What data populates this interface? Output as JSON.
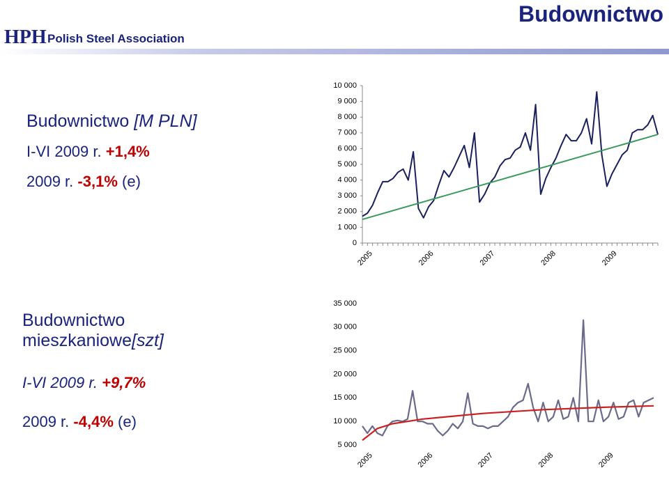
{
  "header": {
    "logo": "HPH",
    "org": "Polish Steel Association",
    "title": "Budownictwo"
  },
  "block1": {
    "title": "Budownictwo",
    "unit": "[M PLN]",
    "line1": {
      "label": "I-VI 2009 r.",
      "value": "+1,4%"
    },
    "line2": {
      "label": "2009 r.",
      "value": "-3,1%",
      "note": "(e)"
    }
  },
  "block2": {
    "title": "Budownictwo",
    "title2": "mieszkaniowe",
    "unit": "[szt]",
    "line1": {
      "label": "I-VI 2009 r.",
      "value": "+9,7%"
    },
    "line2": {
      "label": "2009 r.",
      "value": "-4,4%",
      "note": "(e)"
    }
  },
  "chart_data": [
    {
      "type": "line",
      "categories": [
        "2005",
        null,
        null,
        null,
        null,
        null,
        null,
        null,
        null,
        null,
        null,
        null,
        "2006",
        null,
        null,
        null,
        null,
        null,
        null,
        null,
        null,
        null,
        null,
        null,
        "2007",
        null,
        null,
        null,
        null,
        null,
        null,
        null,
        null,
        null,
        null,
        null,
        "2008",
        null,
        null,
        null,
        null,
        null,
        null,
        null,
        null,
        null,
        null,
        null,
        "2009",
        null,
        null,
        null,
        null,
        null,
        null,
        null,
        null,
        null,
        null
      ],
      "series": [
        {
          "color": "#1a1f5e",
          "values": [
            1700,
            1900,
            2400,
            3200,
            3900,
            3900,
            4100,
            4500,
            4700,
            4000,
            5800,
            2200,
            1600,
            2300,
            2700,
            3700,
            4600,
            4200,
            4800,
            5500,
            6200,
            4800,
            7000,
            2600,
            3100,
            3800,
            4200,
            4900,
            5300,
            5400,
            5900,
            6100,
            7000,
            5900,
            8800,
            3100,
            4100,
            4800,
            5400,
            6200,
            6900,
            6500,
            6500,
            7000,
            7900,
            6300,
            9600,
            5600,
            3600,
            4400,
            5000,
            5600,
            5900,
            7000,
            7200,
            7200,
            7500,
            8100,
            6900
          ]
        },
        {
          "color": "#3a9a5c",
          "x": [
            0,
            58
          ],
          "values": [
            1500,
            6900
          ]
        }
      ],
      "ylim": [
        0,
        10000
      ],
      "yticks": [
        0,
        {
          "value": 1000,
          "label": "1 000"
        },
        {
          "value": 2000,
          "label": "2 000"
        },
        {
          "value": 3000,
          "label": "3 000"
        },
        {
          "value": 4000,
          "label": "4 000"
        },
        {
          "value": 5000,
          "label": "5 000"
        },
        {
          "value": 6000,
          "label": "6 000"
        },
        {
          "value": 7000,
          "label": "7 000"
        },
        {
          "value": 8000,
          "label": "8 000"
        },
        {
          "value": 9000,
          "label": "9 000"
        },
        {
          "value": 10000,
          "label": "10 000"
        }
      ]
    },
    {
      "type": "line",
      "categories": [
        "2005",
        null,
        null,
        null,
        null,
        null,
        null,
        null,
        null,
        null,
        null,
        null,
        "2006",
        null,
        null,
        null,
        null,
        null,
        null,
        null,
        null,
        null,
        null,
        null,
        "2007",
        null,
        null,
        null,
        null,
        null,
        null,
        null,
        null,
        null,
        null,
        null,
        "2008",
        null,
        null,
        null,
        null,
        null,
        null,
        null,
        null,
        null,
        null,
        null,
        "2009",
        null,
        null,
        null,
        null,
        null,
        null,
        null,
        null,
        null,
        null
      ],
      "series": [
        {
          "color": "#6a6a8a",
          "values": [
            9000,
            7500,
            9000,
            7500,
            7000,
            9000,
            10000,
            10200,
            10000,
            10500,
            16500,
            10000,
            10000,
            9500,
            9500,
            8000,
            7000,
            8000,
            9500,
            8500,
            10000,
            16000,
            9500,
            9000,
            9000,
            8500,
            9000,
            9000,
            10000,
            11000,
            13000,
            14000,
            14500,
            18000,
            13000,
            10000,
            14000,
            10000,
            11000,
            14500,
            10500,
            11000,
            15000,
            10000,
            31500,
            10000,
            10000,
            14500,
            10000,
            11000,
            14000,
            10500,
            11000,
            14000,
            14500,
            11000,
            14000,
            14500,
            15000
          ]
        },
        {
          "color": "#cc1f1f",
          "x": [
            0,
            3,
            6,
            12,
            24,
            36,
            48,
            58
          ],
          "values": [
            6000,
            8500,
            9500,
            10500,
            11700,
            12500,
            13000,
            13300
          ]
        }
      ],
      "ylim": [
        5000,
        35000
      ],
      "yticks": [
        {
          "value": 5000,
          "label": "5 000"
        },
        {
          "value": 10000,
          "label": "10 000"
        },
        {
          "value": 15000,
          "label": "15 000"
        },
        {
          "value": 20000,
          "label": "20 000"
        },
        {
          "value": 25000,
          "label": "25 000"
        },
        {
          "value": 30000,
          "label": "30 000"
        },
        {
          "value": 35000,
          "label": "35 000"
        }
      ]
    }
  ]
}
